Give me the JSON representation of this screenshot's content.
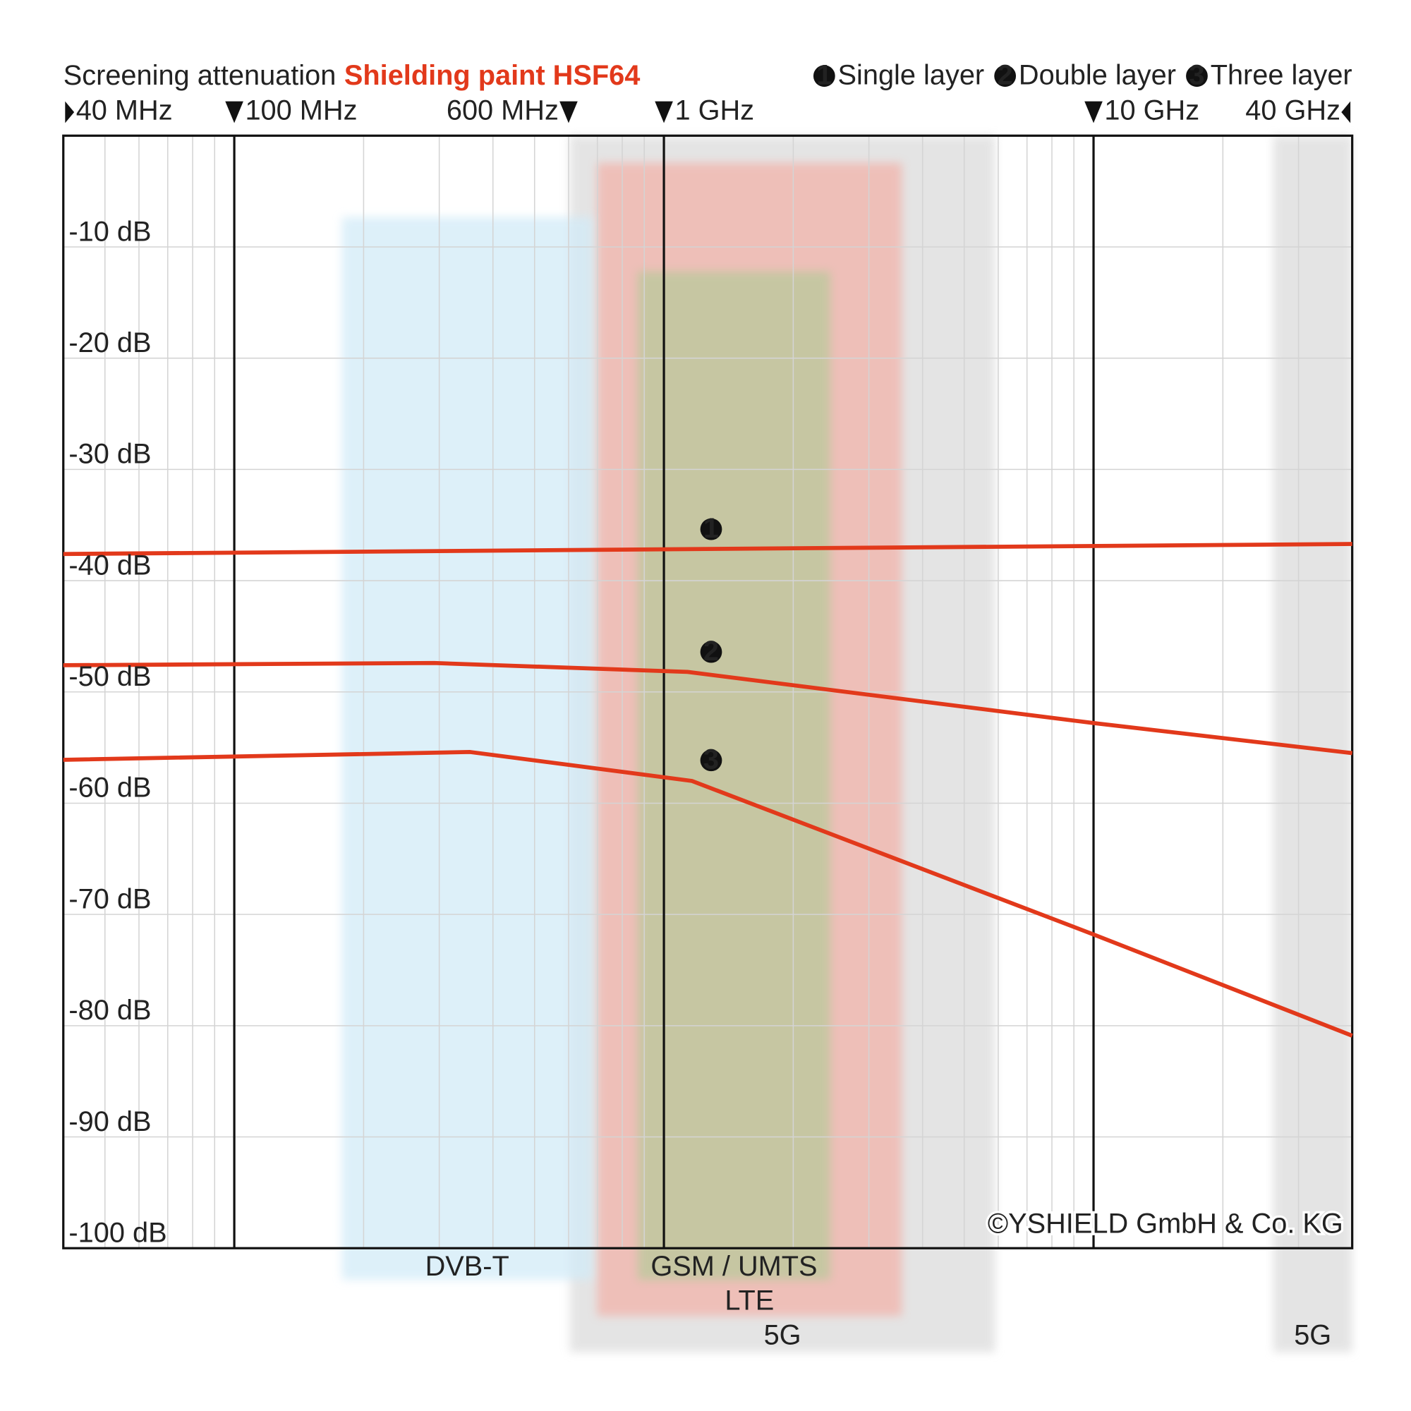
{
  "chart_data": {
    "type": "line",
    "title": "Screening attenuation",
    "product": "Shielding paint HSF64",
    "x_log": true,
    "xlim": [
      40,
      40000
    ],
    "xticks": [
      {
        "value": 40,
        "label": "40 MHz"
      },
      {
        "value": 100,
        "label": "100 MHz"
      },
      {
        "value": 600,
        "label": "600 MHz"
      },
      {
        "value": 1000,
        "label": "1 GHz"
      },
      {
        "value": 10000,
        "label": "10 GHz"
      },
      {
        "value": 40000,
        "label": "40 GHz"
      }
    ],
    "x_minor_ticks": [
      50,
      60,
      70,
      80,
      90,
      200,
      300,
      400,
      500,
      700,
      800,
      900,
      2000,
      3000,
      4000,
      5000,
      6000,
      7000,
      8000,
      9000,
      20000,
      30000
    ],
    "ylim": [
      -100,
      0
    ],
    "yticks": [
      {
        "value": -10,
        "label": "-10 dB"
      },
      {
        "value": -20,
        "label": "-20 dB"
      },
      {
        "value": -30,
        "label": "-30 dB"
      },
      {
        "value": -40,
        "label": "-40 dB"
      },
      {
        "value": -50,
        "label": "-50 dB"
      },
      {
        "value": -60,
        "label": "-60 dB"
      },
      {
        "value": -70,
        "label": "-70 dB"
      },
      {
        "value": -80,
        "label": "-80 dB"
      },
      {
        "value": -90,
        "label": "-90 dB"
      },
      {
        "value": -100,
        "label": "-100 dB"
      }
    ],
    "grid": true,
    "legend": "top-right",
    "series": [
      {
        "name": "Single layer",
        "marker_label": "1",
        "color": "#e2391b",
        "x": [
          40,
          40000
        ],
        "values": [
          -37.6,
          -36.7
        ]
      },
      {
        "name": "Double layer",
        "marker_label": "2",
        "color": "#e2391b",
        "x": [
          40,
          292,
          1135,
          10000,
          40000
        ],
        "values": [
          -47.6,
          -47.4,
          -48.2,
          -52.8,
          -55.5
        ]
      },
      {
        "name": "Three layer",
        "marker_label": "3",
        "color": "#e2391b",
        "x": [
          40,
          354,
          1162,
          10000,
          40000
        ],
        "values": [
          -56.1,
          -55.4,
          -58.0,
          -71.8,
          -80.9
        ]
      }
    ],
    "bands": [
      {
        "name": "5G",
        "range": [
          604,
          5900
        ],
        "color": "#dcdcdc"
      },
      {
        "name": "5G",
        "range": [
          26200,
          40000
        ],
        "color": "#dcdcdc"
      },
      {
        "name": "LTE",
        "range": [
          699,
          3580
        ],
        "color": "#f2b3aa"
      },
      {
        "name": "DVB-T",
        "range": [
          178,
          682
        ],
        "color": "#d2ebf8"
      },
      {
        "name": "GSM / UMTS",
        "range": [
          869,
          2440
        ],
        "color": "#b9c99b"
      }
    ],
    "copyright": "©YSHIELD GmbH & Co. KG"
  }
}
